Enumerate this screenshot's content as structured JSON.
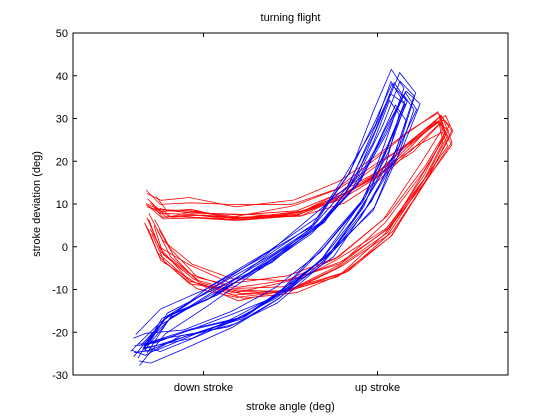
{
  "chart_data": {
    "type": "line",
    "title": "turning flight",
    "xlabel": "stroke angle (deg)",
    "ylabel": "stroke deviation (deg)",
    "xlim": [
      0,
      1
    ],
    "ylim": [
      -30,
      50
    ],
    "x_tick_labels": [
      {
        "x": 0.3,
        "label": "down stroke"
      },
      {
        "x": 0.7,
        "label": "up stroke"
      }
    ],
    "y_ticks": [
      -30,
      -20,
      -10,
      0,
      10,
      20,
      30,
      40,
      50
    ],
    "grid": false,
    "legend": "none",
    "series": [
      {
        "color": "#ff0000",
        "values": [
          {
            "x": 0.18,
            "y": 11
          },
          {
            "x": 0.21,
            "y": 9
          },
          {
            "x": 0.28,
            "y": 9
          },
          {
            "x": 0.38,
            "y": 8
          },
          {
            "x": 0.52,
            "y": 9
          },
          {
            "x": 0.62,
            "y": 13
          },
          {
            "x": 0.71,
            "y": 19
          },
          {
            "x": 0.78,
            "y": 25
          },
          {
            "x": 0.85,
            "y": 31
          },
          {
            "x": 0.87,
            "y": 27
          },
          {
            "x": 0.82,
            "y": 18
          },
          {
            "x": 0.73,
            "y": 5
          },
          {
            "x": 0.62,
            "y": -4
          },
          {
            "x": 0.5,
            "y": -9
          },
          {
            "x": 0.38,
            "y": -10
          },
          {
            "x": 0.28,
            "y": -7
          },
          {
            "x": 0.21,
            "y": -1
          },
          {
            "x": 0.18,
            "y": 6
          }
        ],
        "traces": 12
      },
      {
        "color": "#0000ff",
        "values": [
          {
            "x": 0.16,
            "y": -24
          },
          {
            "x": 0.22,
            "y": -17
          },
          {
            "x": 0.32,
            "y": -11
          },
          {
            "x": 0.45,
            "y": -3
          },
          {
            "x": 0.56,
            "y": 5
          },
          {
            "x": 0.64,
            "y": 15
          },
          {
            "x": 0.7,
            "y": 27
          },
          {
            "x": 0.74,
            "y": 37
          },
          {
            "x": 0.77,
            "y": 33
          },
          {
            "x": 0.73,
            "y": 22
          },
          {
            "x": 0.67,
            "y": 10
          },
          {
            "x": 0.58,
            "y": -2
          },
          {
            "x": 0.48,
            "y": -11
          },
          {
            "x": 0.38,
            "y": -17
          },
          {
            "x": 0.27,
            "y": -21
          },
          {
            "x": 0.19,
            "y": -24
          },
          {
            "x": 0.16,
            "y": -24
          }
        ],
        "traces": 12
      }
    ]
  }
}
